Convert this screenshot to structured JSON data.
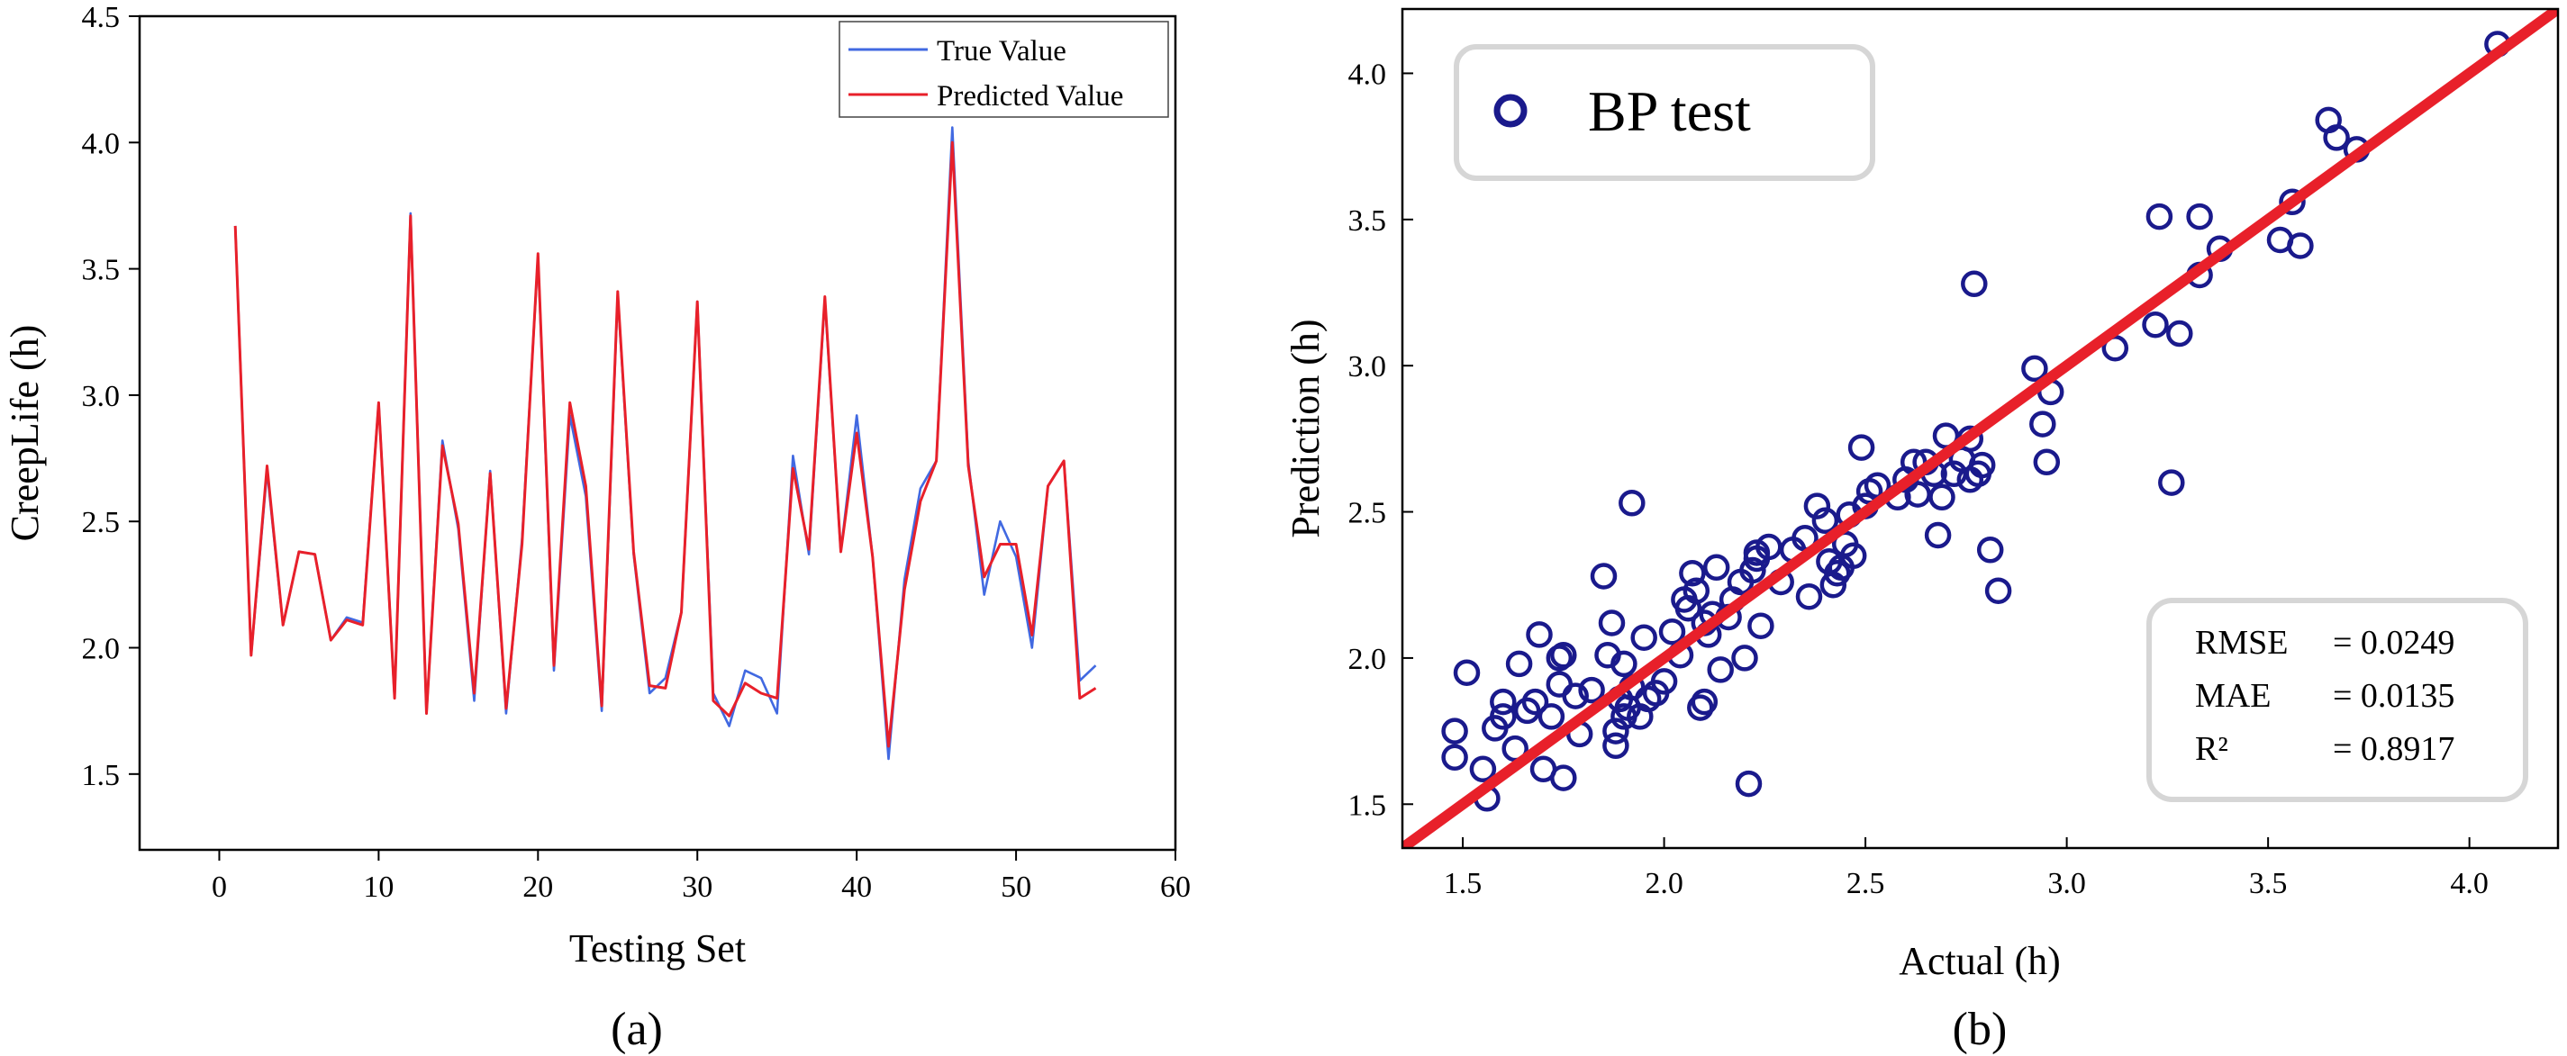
{
  "chart_data": [
    {
      "type": "line",
      "panel_label": "(a)",
      "xlabel": "Testing Set",
      "ylabel": "CreepLife (h)",
      "xlim": [
        -5,
        60
      ],
      "ylim": [
        1.2,
        4.5
      ],
      "xticks": [
        0,
        10,
        20,
        30,
        40,
        50,
        60
      ],
      "yticks": [
        1.5,
        2.0,
        2.5,
        3.0,
        3.5,
        4.0,
        4.5
      ],
      "tick_labels_x": [
        "0",
        "10",
        "20",
        "30",
        "40",
        "50",
        "60"
      ],
      "tick_labels_y": [
        "1.5",
        "2.0",
        "2.5",
        "3.0",
        "3.5",
        "4.0",
        "4.5"
      ],
      "legend_position": "top-right",
      "x": [
        1,
        2,
        3,
        4,
        5,
        6,
        7,
        8,
        9,
        10,
        11,
        12,
        13,
        14,
        15,
        16,
        17,
        18,
        19,
        20,
        21,
        22,
        23,
        24,
        25,
        26,
        27,
        28,
        29,
        30,
        31,
        32,
        33,
        34,
        35,
        36,
        37,
        38,
        39,
        40,
        41,
        42,
        43,
        44,
        45,
        46,
        47,
        48,
        49,
        50,
        51,
        52,
        53,
        54,
        55
      ],
      "series": [
        {
          "name": "True Value",
          "color": "#4169E1",
          "values": [
            3.67,
            1.97,
            2.7,
            2.09,
            2.38,
            2.37,
            2.03,
            2.12,
            2.1,
            2.97,
            1.8,
            3.72,
            1.74,
            2.82,
            2.47,
            1.79,
            2.7,
            1.74,
            2.43,
            3.55,
            1.91,
            2.92,
            2.6,
            1.75,
            3.4,
            2.37,
            1.82,
            1.88,
            2.14,
            3.37,
            1.82,
            1.69,
            1.91,
            1.88,
            1.74,
            2.76,
            2.37,
            3.38,
            2.38,
            2.92,
            2.36,
            1.56,
            2.27,
            2.63,
            2.74,
            4.06,
            2.74,
            2.21,
            2.5,
            2.36,
            2.0,
            2.64,
            2.74,
            1.87,
            1.93
          ]
        },
        {
          "name": "Predicted Value",
          "color": "#E8202A",
          "values": [
            3.67,
            1.97,
            2.72,
            2.09,
            2.38,
            2.37,
            2.03,
            2.11,
            2.09,
            2.97,
            1.8,
            3.71,
            1.74,
            2.8,
            2.49,
            1.82,
            2.69,
            1.76,
            2.41,
            3.56,
            1.93,
            2.97,
            2.64,
            1.77,
            3.41,
            2.38,
            1.85,
            1.84,
            2.14,
            3.37,
            1.79,
            1.73,
            1.86,
            1.82,
            1.8,
            2.71,
            2.39,
            3.39,
            2.38,
            2.85,
            2.36,
            1.61,
            2.23,
            2.58,
            2.74,
            4.0,
            2.72,
            2.28,
            2.41,
            2.41,
            2.05,
            2.64,
            2.74,
            1.8,
            1.84
          ]
        }
      ]
    },
    {
      "type": "scatter",
      "panel_label": "(b)",
      "xlabel": "Actual (h)",
      "ylabel": "Prediction (h)",
      "xlim": [
        1.35,
        4.22
      ],
      "ylim": [
        1.35,
        4.22
      ],
      "xticks": [
        1.5,
        2.0,
        2.5,
        3.0,
        3.5,
        4.0
      ],
      "yticks": [
        1.5,
        2.0,
        2.5,
        3.0,
        3.5,
        4.0
      ],
      "tick_labels_x": [
        "1.5",
        "2.0",
        "2.5",
        "3.0",
        "3.5",
        "4.0"
      ],
      "tick_labels_y": [
        "1.5",
        "2.0",
        "2.5",
        "3.0",
        "3.5",
        "4.0"
      ],
      "legend": "BP test",
      "legend_position": "top-left",
      "point_color": "#1A1A8C",
      "fit_line": {
        "color": "#E8202A",
        "slope": 1,
        "intercept": 0
      },
      "metrics": [
        {
          "name": "RMSE",
          "value": "= 0.0249"
        },
        {
          "name": "MAE",
          "value": "= 0.0135"
        },
        {
          "name": "R²",
          "value": "= 0.8917"
        }
      ],
      "metrics_position": "bottom-right",
      "points": [
        [
          1.48,
          1.75
        ],
        [
          1.48,
          1.66
        ],
        [
          1.51,
          1.95
        ],
        [
          1.55,
          1.62
        ],
        [
          1.56,
          1.52
        ],
        [
          1.58,
          1.76
        ],
        [
          1.6,
          1.85
        ],
        [
          1.6,
          1.8
        ],
        [
          1.63,
          1.69
        ],
        [
          1.64,
          1.98
        ],
        [
          1.66,
          1.82
        ],
        [
          1.68,
          1.85
        ],
        [
          1.69,
          2.08
        ],
        [
          1.7,
          1.62
        ],
        [
          1.72,
          1.8
        ],
        [
          1.74,
          1.91
        ],
        [
          1.74,
          2.0
        ],
        [
          1.75,
          2.01
        ],
        [
          1.75,
          1.59
        ],
        [
          1.78,
          1.87
        ],
        [
          1.79,
          1.74
        ],
        [
          1.82,
          1.89
        ],
        [
          1.85,
          2.28
        ],
        [
          1.86,
          2.01
        ],
        [
          1.87,
          2.12
        ],
        [
          1.88,
          1.75
        ],
        [
          1.88,
          1.7
        ],
        [
          1.89,
          1.86
        ],
        [
          1.9,
          1.8
        ],
        [
          1.9,
          1.98
        ],
        [
          1.91,
          1.83
        ],
        [
          1.92,
          1.9
        ],
        [
          1.92,
          2.53
        ],
        [
          1.94,
          1.8
        ],
        [
          1.95,
          2.07
        ],
        [
          1.96,
          1.86
        ],
        [
          1.98,
          1.88
        ],
        [
          2.0,
          1.92
        ],
        [
          2.02,
          2.09
        ],
        [
          2.04,
          2.01
        ],
        [
          2.05,
          2.2
        ],
        [
          2.06,
          2.17
        ],
        [
          2.07,
          2.29
        ],
        [
          2.08,
          2.23
        ],
        [
          2.09,
          1.83
        ],
        [
          2.1,
          2.12
        ],
        [
          2.1,
          1.85
        ],
        [
          2.11,
          2.08
        ],
        [
          2.12,
          2.15
        ],
        [
          2.13,
          2.31
        ],
        [
          2.14,
          1.96
        ],
        [
          2.16,
          2.14
        ],
        [
          2.17,
          2.2
        ],
        [
          2.19,
          2.26
        ],
        [
          2.2,
          2.0
        ],
        [
          2.21,
          1.57
        ],
        [
          2.22,
          2.3
        ],
        [
          2.23,
          2.36
        ],
        [
          2.23,
          2.34
        ],
        [
          2.24,
          2.11
        ],
        [
          2.26,
          2.38
        ],
        [
          2.29,
          2.26
        ],
        [
          2.32,
          2.37
        ],
        [
          2.35,
          2.41
        ],
        [
          2.36,
          2.21
        ],
        [
          2.38,
          2.52
        ],
        [
          2.4,
          2.47
        ],
        [
          2.41,
          2.33
        ],
        [
          2.42,
          2.25
        ],
        [
          2.43,
          2.29
        ],
        [
          2.44,
          2.31
        ],
        [
          2.45,
          2.39
        ],
        [
          2.46,
          2.49
        ],
        [
          2.47,
          2.35
        ],
        [
          2.49,
          2.72
        ],
        [
          2.5,
          2.52
        ],
        [
          2.51,
          2.57
        ],
        [
          2.53,
          2.59
        ],
        [
          2.58,
          2.55
        ],
        [
          2.6,
          2.61
        ],
        [
          2.62,
          2.67
        ],
        [
          2.63,
          2.56
        ],
        [
          2.65,
          2.67
        ],
        [
          2.67,
          2.63
        ],
        [
          2.68,
          2.42
        ],
        [
          2.69,
          2.55
        ],
        [
          2.7,
          2.76
        ],
        [
          2.72,
          2.63
        ],
        [
          2.74,
          2.68
        ],
        [
          2.76,
          2.61
        ],
        [
          2.76,
          2.75
        ],
        [
          2.77,
          3.28
        ],
        [
          2.78,
          2.63
        ],
        [
          2.79,
          2.66
        ],
        [
          2.81,
          2.37
        ],
        [
          2.83,
          2.23
        ],
        [
          2.92,
          2.99
        ],
        [
          2.94,
          2.8
        ],
        [
          2.95,
          2.67
        ],
        [
          2.96,
          2.91
        ],
        [
          3.12,
          3.06
        ],
        [
          3.22,
          3.14
        ],
        [
          3.23,
          3.51
        ],
        [
          3.26,
          2.6
        ],
        [
          3.28,
          3.11
        ],
        [
          3.33,
          3.51
        ],
        [
          3.33,
          3.31
        ],
        [
          3.38,
          3.4
        ],
        [
          3.53,
          3.43
        ],
        [
          3.56,
          3.56
        ],
        [
          3.58,
          3.41
        ],
        [
          3.65,
          3.84
        ],
        [
          3.67,
          3.78
        ],
        [
          3.72,
          3.74
        ],
        [
          4.07,
          4.1
        ]
      ]
    }
  ]
}
